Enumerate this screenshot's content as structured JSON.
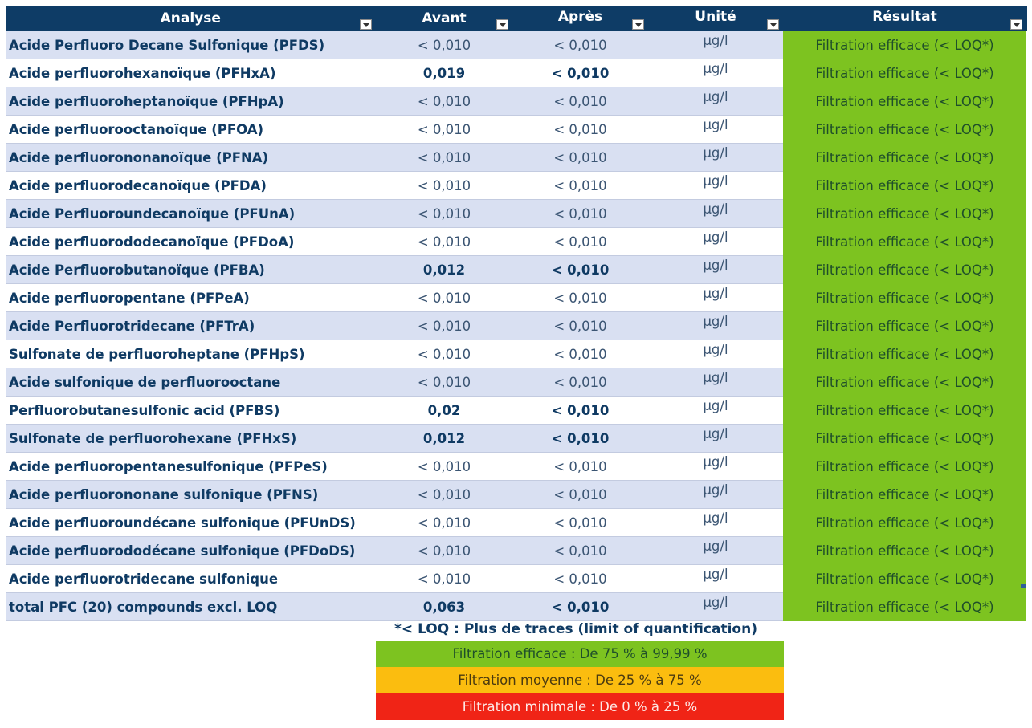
{
  "table": {
    "headers": [
      "Analyse",
      "Avant",
      "Après",
      "Unité",
      "Résultat"
    ],
    "rows": [
      {
        "analyse": "Acide Perfluoro Decane Sulfonique (PFDS)",
        "avant": "< 0,010",
        "apres": "< 0,010",
        "unite": "µg/l",
        "resultat": "Filtration efficace (< LOQ*)",
        "bold": false
      },
      {
        "analyse": "Acide perfluorohexanoïque (PFHxA)",
        "avant": "0,019",
        "apres": "< 0,010",
        "unite": "µg/l",
        "resultat": "Filtration efficace (< LOQ*)",
        "bold": true
      },
      {
        "analyse": "Acide perfluoroheptanoïque (PFHpA)",
        "avant": "< 0,010",
        "apres": "< 0,010",
        "unite": "µg/l",
        "resultat": "Filtration efficace (< LOQ*)",
        "bold": false
      },
      {
        "analyse": "Acide perfluorooctanoïque (PFOA)",
        "avant": "< 0,010",
        "apres": "< 0,010",
        "unite": "µg/l",
        "resultat": "Filtration efficace (< LOQ*)",
        "bold": false
      },
      {
        "analyse": "Acide perfluorononanoïque (PFNA)",
        "avant": "< 0,010",
        "apres": "< 0,010",
        "unite": "µg/l",
        "resultat": "Filtration efficace (< LOQ*)",
        "bold": false
      },
      {
        "analyse": "Acide perfluorodecanoïque (PFDA)",
        "avant": "< 0,010",
        "apres": "< 0,010",
        "unite": "µg/l",
        "resultat": "Filtration efficace (< LOQ*)",
        "bold": false
      },
      {
        "analyse": "Acide Perfluoroundecanoïque (PFUnA)",
        "avant": "< 0,010",
        "apres": "< 0,010",
        "unite": "µg/l",
        "resultat": "Filtration efficace (< LOQ*)",
        "bold": false
      },
      {
        "analyse": "Acide perfluorododecanoïque (PFDoA)",
        "avant": "< 0,010",
        "apres": "< 0,010",
        "unite": "µg/l",
        "resultat": "Filtration efficace (< LOQ*)",
        "bold": false
      },
      {
        "analyse": "Acide Perfluorobutanoïque (PFBA)",
        "avant": "0,012",
        "apres": "< 0,010",
        "unite": "µg/l",
        "resultat": "Filtration efficace (< LOQ*)",
        "bold": true
      },
      {
        "analyse": "Acide perfluoropentane (PFPeA)",
        "avant": "< 0,010",
        "apres": "< 0,010",
        "unite": "µg/l",
        "resultat": "Filtration efficace (< LOQ*)",
        "bold": false
      },
      {
        "analyse": "Acide Perfluorotridecane (PFTrA)",
        "avant": "< 0,010",
        "apres": "< 0,010",
        "unite": "µg/l",
        "resultat": "Filtration efficace (< LOQ*)",
        "bold": false
      },
      {
        "analyse": "Sulfonate de perfluoroheptane (PFHpS)",
        "avant": "< 0,010",
        "apres": "< 0,010",
        "unite": "µg/l",
        "resultat": "Filtration efficace (< LOQ*)",
        "bold": false
      },
      {
        "analyse": "Acide sulfonique de perfluorooctane",
        "avant": "< 0,010",
        "apres": "< 0,010",
        "unite": "µg/l",
        "resultat": "Filtration efficace (< LOQ*)",
        "bold": false
      },
      {
        "analyse": "Perfluorobutanesulfonic acid (PFBS)",
        "avant": "0,02",
        "apres": "< 0,010",
        "unite": "µg/l",
        "resultat": "Filtration efficace (< LOQ*)",
        "bold": true
      },
      {
        "analyse": "Sulfonate de perfluorohexane (PFHxS)",
        "avant": "0,012",
        "apres": "< 0,010",
        "unite": "µg/l",
        "resultat": "Filtration efficace (< LOQ*)",
        "bold": true
      },
      {
        "analyse": "Acide perfluoropentanesulfonique (PFPeS)",
        "avant": "< 0,010",
        "apres": "< 0,010",
        "unite": "µg/l",
        "resultat": "Filtration efficace (< LOQ*)",
        "bold": false
      },
      {
        "analyse": "Acide perfluorononane sulfonique (PFNS)",
        "avant": "< 0,010",
        "apres": "< 0,010",
        "unite": "µg/l",
        "resultat": "Filtration efficace (< LOQ*)",
        "bold": false
      },
      {
        "analyse": "Acide perfluoroundécane sulfonique (PFUnDS)",
        "avant": "< 0,010",
        "apres": "< 0,010",
        "unite": "µg/l",
        "resultat": "Filtration efficace (< LOQ*)",
        "bold": false
      },
      {
        "analyse": "Acide perfluorododécane sulfonique (PFDoDS)",
        "avant": "< 0,010",
        "apres": "< 0,010",
        "unite": "µg/l",
        "resultat": "Filtration efficace (< LOQ*)",
        "bold": false
      },
      {
        "analyse": "Acide perfluorotridecane sulfonique",
        "avant": "< 0,010",
        "apres": "< 0,010",
        "unite": "µg/l",
        "resultat": "Filtration efficace (< LOQ*)",
        "bold": false
      },
      {
        "analyse": "total PFC (20) compounds excl. LOQ",
        "avant": "0,063",
        "apres": "< 0,010",
        "unite": "µg/l",
        "resultat": "Filtration efficace (< LOQ*)",
        "bold": true
      }
    ]
  },
  "legend": {
    "title": "*< LOQ : Plus de traces (limit of quantification)",
    "efficace": "Filtration efficace : De 75 % à 99,99 %",
    "moyenne": "Filtration moyenne : De 25 % à 75 %",
    "minimale": "Filtration minimale : De 0 % à 25 %"
  },
  "colors": {
    "header_bg": "#0e3c66",
    "row_band": "#d9e0f2",
    "green": "#7dc320",
    "yellow": "#fbbd0f",
    "red": "#f02416"
  }
}
